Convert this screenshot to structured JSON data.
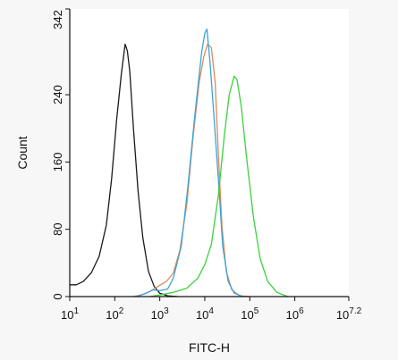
{
  "chart_data": {
    "type": "line",
    "title": "",
    "xlabel": "FITC-H",
    "ylabel": "Count",
    "x_scale": "log",
    "xlim": [
      10,
      15848932
    ],
    "ylim": [
      0,
      342
    ],
    "grid": false,
    "x_ticks": [
      {
        "value": 10,
        "base": "10",
        "exp": "1"
      },
      {
        "value": 100,
        "base": "10",
        "exp": "2"
      },
      {
        "value": 1000,
        "base": "10",
        "exp": "3"
      },
      {
        "value": 10000,
        "base": "10",
        "exp": "4"
      },
      {
        "value": 100000,
        "base": "10",
        "exp": "5"
      },
      {
        "value": 1000000,
        "base": "10",
        "exp": "6"
      },
      {
        "value": 15848932,
        "base": "10",
        "exp": "7.2"
      }
    ],
    "y_ticks": [
      0,
      80,
      160,
      240,
      342
    ],
    "series": [
      {
        "color": "#1a1a1a",
        "points": [
          [
            10,
            14
          ],
          [
            14,
            14
          ],
          [
            20,
            18
          ],
          [
            30,
            28
          ],
          [
            45,
            48
          ],
          [
            65,
            85
          ],
          [
            85,
            140
          ],
          [
            110,
            210
          ],
          [
            140,
            265
          ],
          [
            170,
            300
          ],
          [
            190,
            292
          ],
          [
            215,
            268
          ],
          [
            260,
            200
          ],
          [
            330,
            125
          ],
          [
            420,
            70
          ],
          [
            560,
            30
          ],
          [
            750,
            12
          ],
          [
            1000,
            4
          ],
          [
            1500,
            1
          ],
          [
            2500,
            0
          ]
        ]
      },
      {
        "color": "#e08a5e",
        "points": [
          [
            250,
            0
          ],
          [
            400,
            2
          ],
          [
            600,
            6
          ],
          [
            900,
            12
          ],
          [
            1400,
            18
          ],
          [
            2000,
            28
          ],
          [
            2800,
            55
          ],
          [
            4000,
            110
          ],
          [
            5500,
            190
          ],
          [
            7500,
            255
          ],
          [
            9500,
            285
          ],
          [
            11500,
            300
          ],
          [
            14000,
            296
          ],
          [
            17000,
            255
          ],
          [
            20000,
            170
          ],
          [
            24000,
            85
          ],
          [
            30000,
            30
          ],
          [
            40000,
            8
          ],
          [
            60000,
            1
          ],
          [
            100000,
            0
          ]
        ]
      },
      {
        "color": "#3aa4d6",
        "points": [
          [
            300,
            0
          ],
          [
            500,
            4
          ],
          [
            700,
            8
          ],
          [
            1000,
            7
          ],
          [
            1500,
            9
          ],
          [
            2000,
            22
          ],
          [
            3000,
            60
          ],
          [
            4200,
            130
          ],
          [
            6000,
            215
          ],
          [
            8500,
            290
          ],
          [
            10000,
            313
          ],
          [
            11200,
            318
          ],
          [
            13000,
            280
          ],
          [
            16000,
            215
          ],
          [
            20000,
            140
          ],
          [
            25000,
            60
          ],
          [
            33000,
            18
          ],
          [
            45000,
            4
          ],
          [
            70000,
            0
          ]
        ]
      },
      {
        "color": "#3bd23b",
        "points": [
          [
            600,
            0
          ],
          [
            1000,
            2
          ],
          [
            2000,
            5
          ],
          [
            4000,
            10
          ],
          [
            7000,
            22
          ],
          [
            10000,
            38
          ],
          [
            14000,
            62
          ],
          [
            20000,
            120
          ],
          [
            27000,
            190
          ],
          [
            35000,
            240
          ],
          [
            45000,
            262
          ],
          [
            52000,
            258
          ],
          [
            65000,
            225
          ],
          [
            85000,
            165
          ],
          [
            120000,
            95
          ],
          [
            170000,
            45
          ],
          [
            250000,
            18
          ],
          [
            400000,
            5
          ],
          [
            700000,
            0
          ]
        ]
      }
    ]
  }
}
